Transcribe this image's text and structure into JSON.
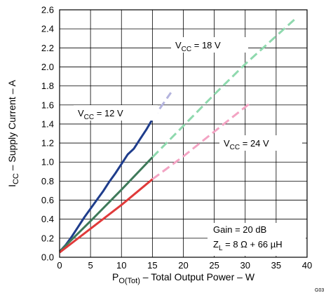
{
  "chart_data": {
    "type": "line",
    "xlabel": {
      "main": "P",
      "sub": "O(Tot)",
      "rest": " – Total Output Power – W"
    },
    "ylabel": {
      "main": "I",
      "sub": "CC",
      "rest": " – Supply Current – A"
    },
    "xlim": [
      0,
      40
    ],
    "ylim": [
      0,
      2.6
    ],
    "xticks": [
      0,
      5,
      10,
      15,
      20,
      25,
      30,
      35,
      40
    ],
    "yticks": [
      0.0,
      0.2,
      0.4,
      0.6,
      0.8,
      1.0,
      1.2,
      1.4,
      1.6,
      1.8,
      2.0,
      2.2,
      2.4,
      2.6
    ],
    "ytick_labels": [
      "0.0",
      "0.2",
      "0.4",
      "0.6",
      "0.8",
      "1.0",
      "1.2",
      "1.4",
      "1.6",
      "1.8",
      "2.0",
      "2.2",
      "2.4",
      "2.6"
    ],
    "grid": true,
    "series": [
      {
        "name": "VCC = 12 V",
        "label": {
          "main": "V",
          "sub": "CC",
          "rest": " = 12 V"
        },
        "color": "#1f3d8c",
        "ext_color": "#b4b4de",
        "solid": [
          [
            0,
            0.06
          ],
          [
            1,
            0.13
          ],
          [
            2,
            0.22
          ],
          [
            3,
            0.32
          ],
          [
            4,
            0.42
          ],
          [
            5,
            0.51
          ],
          [
            6,
            0.6
          ],
          [
            7,
            0.69
          ],
          [
            8,
            0.79
          ],
          [
            9,
            0.88
          ],
          [
            10,
            0.98
          ],
          [
            11,
            1.08
          ],
          [
            12,
            1.14
          ],
          [
            13,
            1.24
          ],
          [
            14,
            1.34
          ],
          [
            15,
            1.45
          ]
        ],
        "dashed": [
          [
            15,
            1.45
          ],
          [
            18,
            1.73
          ]
        ]
      },
      {
        "name": "VCC = 18 V",
        "label": {
          "main": "V",
          "sub": "CC",
          "rest": " = 18 V"
        },
        "color": "#3f7a5a",
        "ext_color": "#8fd9ae",
        "solid": [
          [
            0,
            0.06
          ],
          [
            5,
            0.38
          ],
          [
            10,
            0.71
          ],
          [
            15,
            1.05
          ]
        ],
        "dashed": [
          [
            15,
            1.05
          ],
          [
            20,
            1.38
          ],
          [
            25,
            1.71
          ],
          [
            30,
            2.03
          ],
          [
            38,
            2.5
          ]
        ]
      },
      {
        "name": "VCC = 24 V",
        "label": {
          "main": "V",
          "sub": "CC",
          "rest": " = 24 V"
        },
        "color": "#e03a3a",
        "ext_color": "#f3a3c3",
        "solid": [
          [
            0,
            0.05
          ],
          [
            5,
            0.3
          ],
          [
            10,
            0.55
          ],
          [
            15,
            0.82
          ]
        ],
        "dashed": [
          [
            15,
            0.82
          ],
          [
            20,
            1.06
          ],
          [
            25,
            1.32
          ],
          [
            31,
            1.63
          ]
        ]
      }
    ],
    "annotations": [
      {
        "main": "Gain = 20 dB",
        "sub": "",
        "rest": ""
      },
      {
        "main": "Z",
        "sub": "L",
        "rest": " = 8 Ω + 66 µH"
      }
    ],
    "figure_id": "G03"
  }
}
